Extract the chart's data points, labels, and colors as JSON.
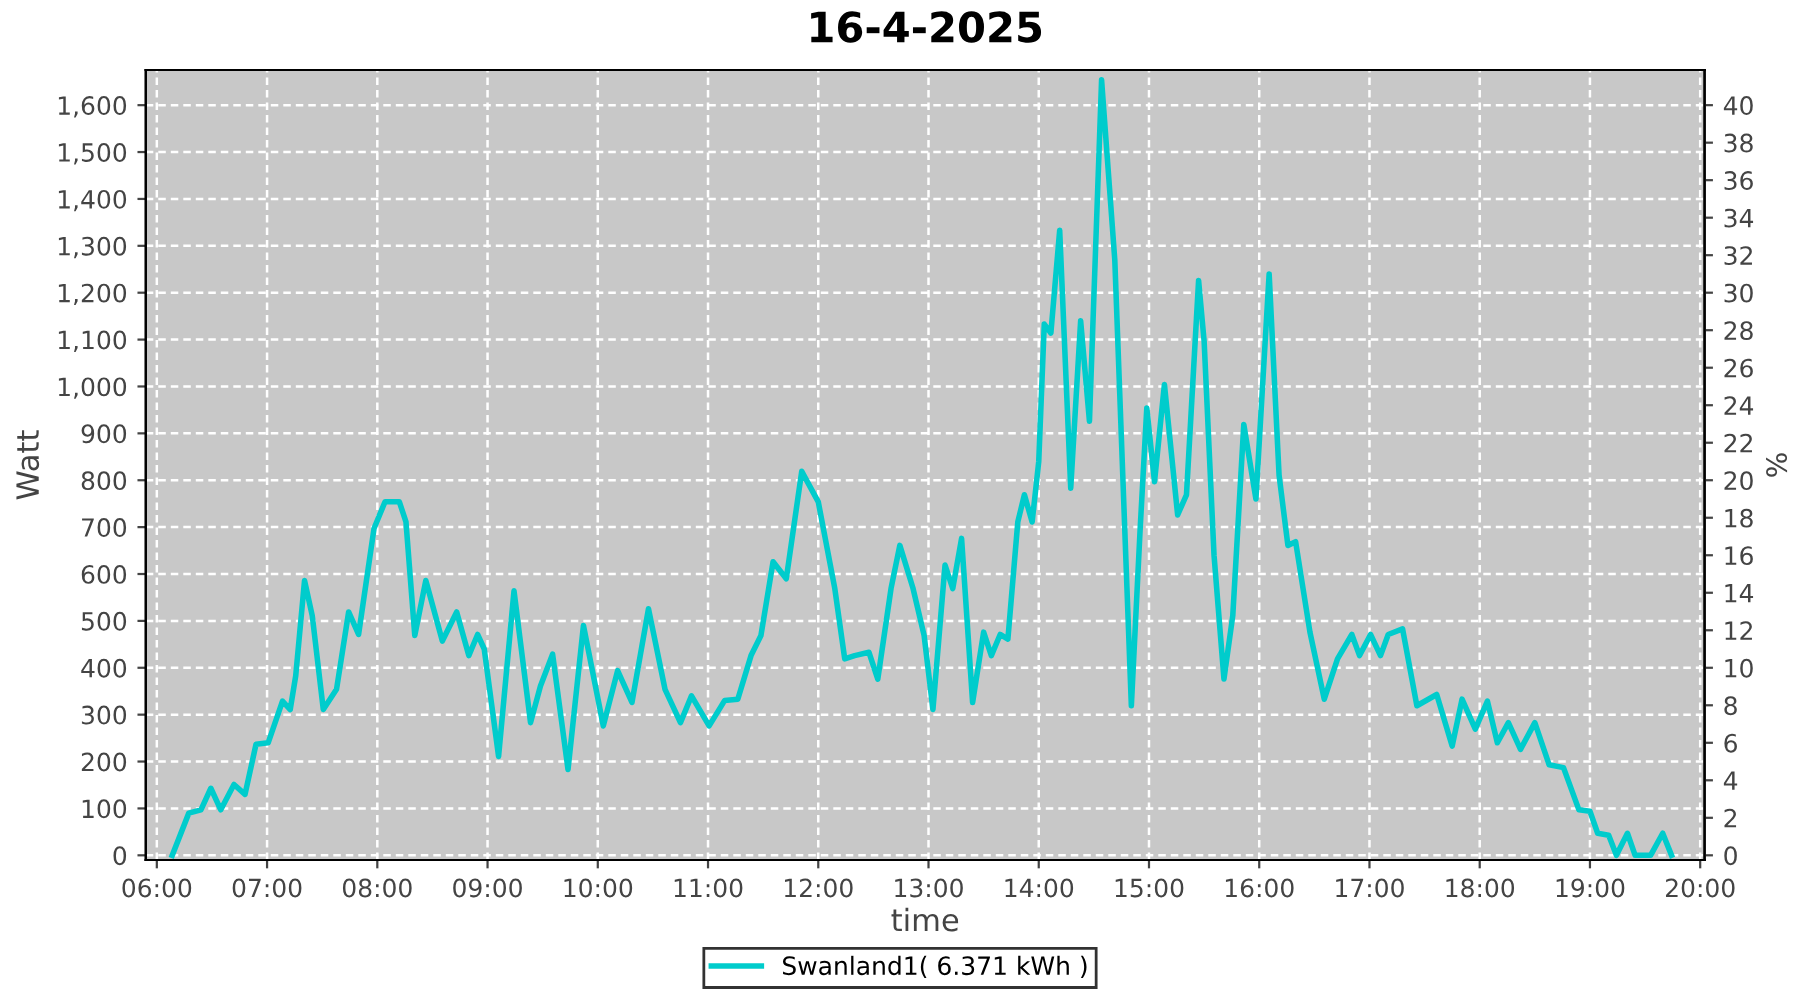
{
  "chart_data": {
    "type": "line",
    "title": "16-4-2025",
    "xlabel": "time",
    "ylabel": "Watt",
    "y2label": "%",
    "xlim": [
      5.9,
      20.04
    ],
    "xticks": [
      {
        "value": 6,
        "label": "06:00"
      },
      {
        "value": 7,
        "label": "07:00"
      },
      {
        "value": 8,
        "label": "08:00"
      },
      {
        "value": 9,
        "label": "09:00"
      },
      {
        "value": 10,
        "label": "10:00"
      },
      {
        "value": 11,
        "label": "11:00"
      },
      {
        "value": 12,
        "label": "12:00"
      },
      {
        "value": 13,
        "label": "13:00"
      },
      {
        "value": 14,
        "label": "14:00"
      },
      {
        "value": 15,
        "label": "15:00"
      },
      {
        "value": 16,
        "label": "16:00"
      },
      {
        "value": 17,
        "label": "17:00"
      },
      {
        "value": 18,
        "label": "18:00"
      },
      {
        "value": 19,
        "label": "19:00"
      },
      {
        "value": 20,
        "label": "20:00"
      }
    ],
    "ylim": [
      -10,
      1675
    ],
    "yticks": [
      0,
      100,
      200,
      300,
      400,
      500,
      600,
      700,
      800,
      900,
      {
        "value": 1000,
        "label": "1,000"
      },
      {
        "value": 1100,
        "label": "1,100"
      },
      {
        "value": 1200,
        "label": "1,200"
      },
      {
        "value": 1300,
        "label": "1,300"
      },
      {
        "value": 1400,
        "label": "1,400"
      },
      {
        "value": 1500,
        "label": "1,500"
      },
      {
        "value": 1600,
        "label": "1,600"
      }
    ],
    "y2lim": [
      -0.25,
      41.875
    ],
    "y2ticks": [
      0,
      2,
      4,
      6,
      8,
      10,
      12,
      14,
      16,
      18,
      20,
      22,
      24,
      26,
      28,
      30,
      32,
      34,
      36,
      38,
      40
    ],
    "grid": true,
    "legend": "bottom",
    "line_style": "solid",
    "marker": "none",
    "series": [
      {
        "name": "Swanland1( 6.371 kWh )",
        "color": "#00cccc",
        "x": [
          6.14,
          6.29,
          6.4,
          6.49,
          6.58,
          6.7,
          6.8,
          6.9,
          7.01,
          7.14,
          7.21,
          7.26,
          7.34,
          7.41,
          7.51,
          7.63,
          7.74,
          7.83,
          7.97,
          8.07,
          8.2,
          8.26,
          8.34,
          8.44,
          8.59,
          8.72,
          8.83,
          8.91,
          8.97,
          9.1,
          9.24,
          9.39,
          9.48,
          9.59,
          9.73,
          9.87,
          10.05,
          10.18,
          10.31,
          10.46,
          10.61,
          10.75,
          10.85,
          11.01,
          11.15,
          11.27,
          11.39,
          11.48,
          11.59,
          11.71,
          11.85,
          12.0,
          12.15,
          12.24,
          12.33,
          12.46,
          12.54,
          12.66,
          12.74,
          12.86,
          12.96,
          13.04,
          13.15,
          13.22,
          13.3,
          13.4,
          13.5,
          13.57,
          13.65,
          13.72,
          13.81,
          13.87,
          13.94,
          14.0,
          14.05,
          14.11,
          14.19,
          14.29,
          14.38,
          14.46,
          14.57,
          14.69,
          14.78,
          14.84,
          14.92,
          14.98,
          15.05,
          15.14,
          15.26,
          15.34,
          15.45,
          15.5,
          15.59,
          15.68,
          15.76,
          15.86,
          15.97,
          16.09,
          16.18,
          16.26,
          16.33,
          16.46,
          16.59,
          16.71,
          16.84,
          16.91,
          17.01,
          17.1,
          17.17,
          17.3,
          17.43,
          17.61,
          17.75,
          17.84,
          17.96,
          18.07,
          18.16,
          18.26,
          18.37,
          18.5,
          18.63,
          18.76,
          18.9,
          19.0,
          19.07,
          19.17,
          19.24,
          19.34,
          19.41,
          19.55,
          19.66,
          19.74
        ],
        "values": [
          0,
          90,
          97,
          143,
          97,
          151,
          130,
          237,
          240,
          329,
          311,
          383,
          586,
          511,
          311,
          354,
          519,
          471,
          697,
          754,
          754,
          711,
          469,
          586,
          457,
          519,
          426,
          471,
          440,
          211,
          564,
          283,
          361,
          429,
          183,
          490,
          276,
          394,
          326,
          526,
          354,
          283,
          340,
          276,
          330,
          333,
          426,
          469,
          626,
          590,
          819,
          754,
          569,
          419,
          426,
          433,
          376,
          569,
          661,
          569,
          469,
          311,
          619,
          569,
          676,
          326,
          476,
          426,
          471,
          461,
          711,
          769,
          711,
          840,
          1133,
          1114,
          1333,
          783,
          1140,
          926,
          1654,
          1269,
          697,
          319,
          697,
          954,
          797,
          1004,
          726,
          769,
          1226,
          1097,
          640,
          376,
          511,
          919,
          760,
          1240,
          811,
          661,
          669,
          476,
          333,
          419,
          471,
          426,
          471,
          426,
          471,
          483,
          319,
          343,
          233,
          333,
          269,
          329,
          240,
          283,
          226,
          283,
          193,
          187,
          97,
          94,
          47,
          43,
          0,
          47,
          0,
          0,
          47,
          0
        ]
      }
    ]
  }
}
